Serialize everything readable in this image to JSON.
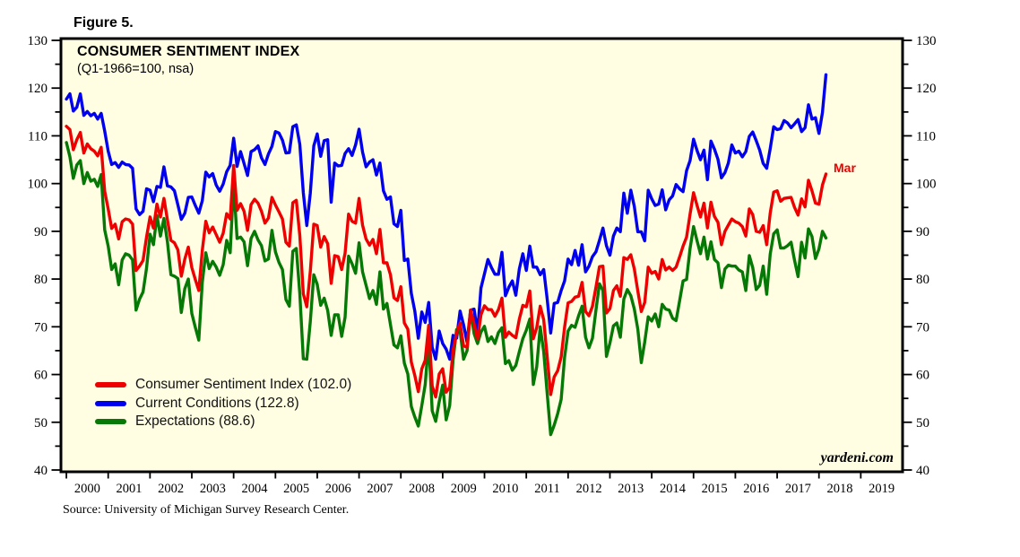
{
  "figure_label": "Figure 5.",
  "title": "CONSUMER SENTIMENT INDEX",
  "subtitle": "(Q1-1966=100, nsa)",
  "watermark": "yardeni.com",
  "source": "Source: University of Michigan Survey Research Center.",
  "annotation": {
    "text": "Mar",
    "color": "#ee0000",
    "x_time": 2018.25,
    "y_value": 104.5
  },
  "colors": {
    "plot_background": "#fffee2",
    "frame": "#000000",
    "sentiment": "#ee0000",
    "current_conditions": "#0000ee",
    "expectations": "#067806"
  },
  "axes": {
    "y_min": 40,
    "y_max": 130,
    "y_major_step": 10,
    "y_minor_step": 5,
    "y_tick_labels": [
      "40",
      "50",
      "60",
      "70",
      "80",
      "90",
      "100",
      "110",
      "120",
      "130"
    ],
    "x_year_ticks": [
      2000,
      2001,
      2002,
      2003,
      2004,
      2005,
      2006,
      2007,
      2008,
      2009,
      2010,
      2011,
      2012,
      2013,
      2014,
      2015,
      2016,
      2017,
      2018,
      2019
    ],
    "x_year_labels": [
      "2000",
      "2001",
      "2002",
      "2003",
      "2004",
      "2005",
      "2006",
      "2007",
      "2008",
      "2009",
      "2010",
      "2011",
      "2012",
      "2013",
      "2014",
      "2015",
      "2016",
      "2017",
      "2018",
      "2019"
    ]
  },
  "chart_data": {
    "type": "line",
    "title": "CONSUMER SENTIMENT INDEX",
    "subtitle": "(Q1-1966=100, nsa)",
    "x_unit": "month",
    "x_start": "2000-01",
    "x_end": "2018-03",
    "x_axis_domain_years": [
      1999.87,
      2020.0
    ],
    "ylim": [
      40,
      130
    ],
    "grid": false,
    "legend_position": "lower-left",
    "legend": [
      "Consumer Sentiment Index (102.0)",
      "Current Conditions (122.8)",
      "Expectations (88.6)"
    ],
    "series": [
      {
        "name": "Consumer Sentiment Index",
        "latest": 102.0,
        "color": "#ee0000",
        "values": [
          112.0,
          111.3,
          107.1,
          109.2,
          110.7,
          106.4,
          108.3,
          107.3,
          106.8,
          105.8,
          107.6,
          98.4,
          94.7,
          90.6,
          91.5,
          88.4,
          92.0,
          92.6,
          92.4,
          91.5,
          81.8,
          82.7,
          83.9,
          88.8,
          93.0,
          90.7,
          95.7,
          93.0,
          96.9,
          92.4,
          88.1,
          87.6,
          86.1,
          80.6,
          84.2,
          86.7,
          82.4,
          79.9,
          77.6,
          86.0,
          92.1,
          89.7,
          90.9,
          89.3,
          87.7,
          89.6,
          93.7,
          92.6,
          103.8,
          94.4,
          95.8,
          94.2,
          90.2,
          95.6,
          96.7,
          95.9,
          94.2,
          91.7,
          92.8,
          97.1,
          95.5,
          94.1,
          92.6,
          87.7,
          86.9,
          96.0,
          96.5,
          89.1,
          76.9,
          74.2,
          81.6,
          91.5,
          91.2,
          86.7,
          88.9,
          87.4,
          79.1,
          84.9,
          84.7,
          82.0,
          85.4,
          93.6,
          92.1,
          91.7,
          96.9,
          91.3,
          88.4,
          87.1,
          88.3,
          85.3,
          90.4,
          83.4,
          83.4,
          80.9,
          76.1,
          75.5,
          78.4,
          70.8,
          69.5,
          62.6,
          59.8,
          56.4,
          61.2,
          63.0,
          70.3,
          57.6,
          55.3,
          60.1,
          61.2,
          56.3,
          57.3,
          65.1,
          68.7,
          70.8,
          66.0,
          65.7,
          73.5,
          70.6,
          67.4,
          72.5,
          74.4,
          73.6,
          73.6,
          72.2,
          73.6,
          76.0,
          67.8,
          68.9,
          68.2,
          67.7,
          71.6,
          74.5,
          74.2,
          77.5,
          67.5,
          69.8,
          74.3,
          71.5,
          63.7,
          55.8,
          59.5,
          60.8,
          63.7,
          69.9,
          75.0,
          75.3,
          76.2,
          76.4,
          79.3,
          73.2,
          72.3,
          74.3,
          78.3,
          82.6,
          82.7,
          72.9,
          73.8,
          77.6,
          78.6,
          76.4,
          84.5,
          84.1,
          85.1,
          82.1,
          77.5,
          73.2,
          75.1,
          82.5,
          81.2,
          81.6,
          80.0,
          84.1,
          81.9,
          82.5,
          81.8,
          82.5,
          84.6,
          86.9,
          88.8,
          93.6,
          98.1,
          95.4,
          93.0,
          95.9,
          90.7,
          96.1,
          93.1,
          91.9,
          87.2,
          90.0,
          91.3,
          92.6,
          92.0,
          91.7,
          91.0,
          89.0,
          94.7,
          93.5,
          90.0,
          89.8,
          91.2,
          87.2,
          93.8,
          98.2,
          98.5,
          96.3,
          96.9,
          97.0,
          97.1,
          95.0,
          93.4,
          96.8,
          95.1,
          100.7,
          98.5,
          95.9,
          95.7,
          99.7,
          102.0
        ]
      },
      {
        "name": "Current Conditions",
        "latest": 122.8,
        "color": "#0000ee",
        "values": [
          117.7,
          118.8,
          115.2,
          116.0,
          118.8,
          114.3,
          115.1,
          114.2,
          114.7,
          113.5,
          114.7,
          111.0,
          106.8,
          104.0,
          104.4,
          103.4,
          104.5,
          104.0,
          103.9,
          103.2,
          94.7,
          93.5,
          94.2,
          98.9,
          98.6,
          96.2,
          99.4,
          99.2,
          103.5,
          99.5,
          99.3,
          98.5,
          95.5,
          92.5,
          93.8,
          97.1,
          97.2,
          95.4,
          93.8,
          96.4,
          102.4,
          101.4,
          102.1,
          99.7,
          98.4,
          99.9,
          102.5,
          103.8,
          109.5,
          103.6,
          106.7,
          104.2,
          101.7,
          106.7,
          107.1,
          107.9,
          105.4,
          104.0,
          106.2,
          107.8,
          110.9,
          110.6,
          109.1,
          106.4,
          106.5,
          111.9,
          112.3,
          108.2,
          98.1,
          91.2,
          98.0,
          107.9,
          110.4,
          105.7,
          109.0,
          109.2,
          96.1,
          104.3,
          103.7,
          103.8,
          106.3,
          107.3,
          105.9,
          108.1,
          111.4,
          106.6,
          103.5,
          104.5,
          105.0,
          101.8,
          104.3,
          98.5,
          96.7,
          97.2,
          91.6,
          91.0,
          94.4,
          83.9,
          84.2,
          77.0,
          73.3,
          67.6,
          73.1,
          70.9,
          75.1,
          65.7,
          63.2,
          69.1,
          66.5,
          65.3,
          63.2,
          68.2,
          67.6,
          73.3,
          70.4,
          66.8,
          73.5,
          73.7,
          68.8,
          78.1,
          81.1,
          84.1,
          82.4,
          81.0,
          81.0,
          85.6,
          76.5,
          78.3,
          79.6,
          76.6,
          82.1,
          85.3,
          81.8,
          86.9,
          82.5,
          82.5,
          80.9,
          82.0,
          75.8,
          68.7,
          74.9,
          75.1,
          77.6,
          79.6,
          84.2,
          83.0,
          86.0,
          82.9,
          87.2,
          81.5,
          82.7,
          84.7,
          85.7,
          88.1,
          90.7,
          87.0,
          85.0,
          89.0,
          90.7,
          89.9,
          98.0,
          93.8,
          98.6,
          95.2,
          89.9,
          89.9,
          88.0,
          98.6,
          96.8,
          95.4,
          95.7,
          98.7,
          94.5,
          96.6,
          97.4,
          99.8,
          98.9,
          98.3,
          102.7,
          104.8,
          109.3,
          106.9,
          105.0,
          107.0,
          100.8,
          108.9,
          107.2,
          105.1,
          101.2,
          102.3,
          104.3,
          108.1,
          106.4,
          106.8,
          105.6,
          106.7,
          109.9,
          110.8,
          109.0,
          107.0,
          104.2,
          103.2,
          107.3,
          111.9,
          111.3,
          111.5,
          113.2,
          112.7,
          111.7,
          112.5,
          113.4,
          110.9,
          111.7,
          116.5,
          113.5,
          113.8,
          110.5,
          114.9,
          122.8
        ]
      },
      {
        "name": "Expectations",
        "latest": 88.6,
        "color": "#067806",
        "values": [
          108.6,
          105.6,
          101.1,
          103.9,
          104.8,
          100.0,
          102.3,
          100.5,
          100.9,
          99.4,
          101.9,
          90.3,
          86.9,
          82.0,
          83.2,
          78.8,
          84.0,
          85.3,
          85.0,
          84.0,
          73.5,
          75.8,
          77.3,
          82.3,
          89.4,
          87.2,
          93.3,
          89.0,
          92.7,
          87.8,
          80.9,
          80.6,
          80.1,
          73.0,
          78.0,
          80.0,
          72.8,
          69.9,
          67.2,
          79.3,
          85.5,
          82.2,
          83.7,
          82.5,
          80.8,
          83.0,
          88.1,
          85.5,
          100.1,
          88.5,
          88.8,
          87.8,
          82.8,
          88.5,
          90.0,
          88.2,
          87.0,
          83.8,
          84.2,
          90.2,
          85.7,
          83.5,
          82.0,
          75.7,
          74.3,
          85.8,
          86.4,
          76.9,
          63.3,
          63.2,
          71.1,
          80.9,
          78.9,
          74.5,
          76.0,
          73.4,
          68.2,
          72.5,
          72.5,
          68.0,
          72.0,
          84.8,
          83.2,
          81.2,
          87.6,
          81.5,
          78.7,
          75.9,
          77.6,
          74.7,
          81.5,
          73.7,
          74.9,
          70.5,
          66.2,
          65.6,
          68.1,
          62.4,
          60.1,
          53.3,
          51.1,
          49.2,
          53.5,
          57.9,
          67.2,
          52.4,
          50.2,
          54.3,
          57.8,
          50.5,
          53.5,
          63.1,
          69.4,
          69.2,
          63.2,
          65.0,
          73.5,
          68.6,
          66.5,
          68.9,
          70.1,
          66.9,
          67.9,
          66.5,
          68.8,
          69.8,
          62.3,
          62.9,
          60.9,
          61.9,
          64.8,
          67.5,
          69.3,
          71.6,
          57.9,
          61.6,
          70.0,
          64.8,
          56.0,
          47.4,
          49.4,
          51.8,
          54.8,
          63.6,
          69.1,
          70.3,
          69.9,
          72.3,
          74.3,
          67.8,
          65.6,
          67.6,
          73.5,
          79.0,
          77.6,
          63.8,
          66.6,
          70.2,
          70.8,
          67.8,
          75.8,
          77.8,
          76.5,
          73.7,
          69.5,
          62.5,
          66.8,
          72.1,
          71.2,
          72.7,
          70.0,
          74.7,
          73.7,
          73.5,
          71.8,
          71.3,
          75.4,
          79.6,
          79.9,
          86.4,
          91.0,
          88.0,
          85.3,
          88.8,
          84.2,
          87.8,
          84.1,
          83.4,
          78.2,
          82.1,
          82.9,
          82.7,
          82.7,
          81.9,
          81.5,
          77.6,
          84.9,
          82.4,
          77.8,
          78.7,
          82.7,
          76.8,
          85.2,
          89.5,
          90.3,
          86.5,
          86.5,
          87.0,
          87.7,
          83.9,
          80.5,
          87.7,
          84.4,
          90.5,
          88.9,
          84.3,
          86.3,
          90.0,
          88.6
        ]
      }
    ]
  }
}
